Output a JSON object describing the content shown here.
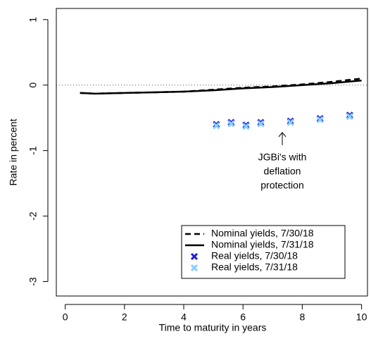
{
  "chart_data": {
    "type": "line",
    "xlabel": "Time to maturity in years",
    "ylabel": "Rate in percent",
    "xlim": [
      -0.3,
      10.2
    ],
    "ylim": [
      -3.22,
      1.17
    ],
    "xticks": [
      0,
      2,
      4,
      6,
      8,
      10
    ],
    "yticks": [
      -3,
      -2,
      -1,
      0,
      1
    ],
    "reference_line": 0,
    "legend": "bottomright",
    "annotation": [
      "JGBi's with",
      "deflation",
      "protection"
    ],
    "series": [
      {
        "name": "Nominal yields, 7/30/18",
        "type": "line",
        "linestyle": "dashed",
        "color": "#000000",
        "x": [
          0.5,
          1,
          2,
          3,
          4,
          5,
          6,
          7,
          8,
          9,
          10
        ],
        "values": [
          -0.12,
          -0.13,
          -0.12,
          -0.11,
          -0.1,
          -0.07,
          -0.04,
          -0.02,
          0.01,
          0.05,
          0.1
        ]
      },
      {
        "name": "Nominal yields, 7/31/18",
        "type": "line",
        "linestyle": "solid",
        "color": "#000000",
        "x": [
          0.5,
          1,
          2,
          3,
          4,
          5,
          6,
          7,
          8,
          9,
          10
        ],
        "values": [
          -0.12,
          -0.13,
          -0.12,
          -0.11,
          -0.1,
          -0.08,
          -0.05,
          -0.03,
          0.0,
          0.03,
          0.07
        ]
      },
      {
        "name": "Real yields, 7/30/18",
        "type": "scatter",
        "color": "#1f1fd6",
        "x": [
          5.1,
          5.6,
          6.1,
          6.6,
          7.6,
          8.6,
          9.6
        ],
        "values": [
          -0.6,
          -0.57,
          -0.61,
          -0.57,
          -0.55,
          -0.51,
          -0.46
        ]
      },
      {
        "name": "Real yields, 7/31/18",
        "type": "scatter",
        "color": "#87cefa",
        "x": [
          5.1,
          5.6,
          6.1,
          6.6,
          7.6,
          8.6,
          9.6
        ],
        "values": [
          -0.62,
          -0.59,
          -0.63,
          -0.59,
          -0.57,
          -0.53,
          -0.48
        ]
      }
    ]
  }
}
